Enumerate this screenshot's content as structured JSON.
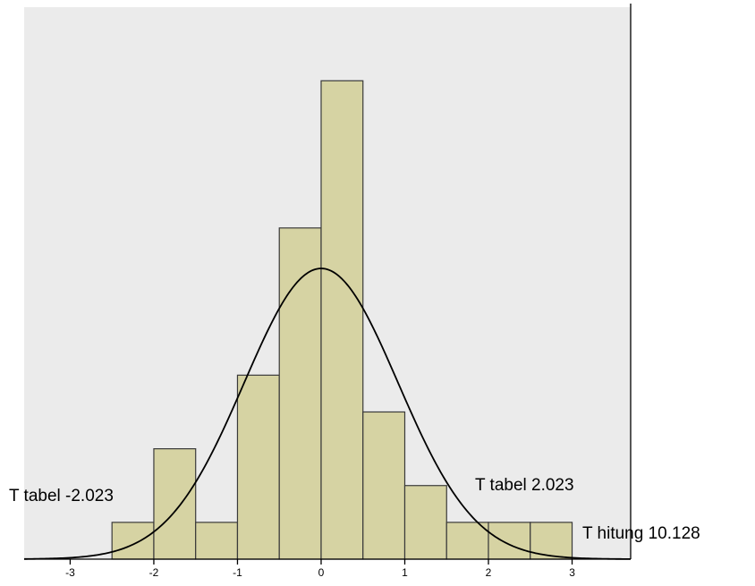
{
  "chart_data": {
    "type": "bar",
    "subtype": "histogram-with-normal-curve",
    "bins": [
      {
        "x0": -2.5,
        "x1": -2.0,
        "value": 1
      },
      {
        "x0": -2.0,
        "x1": -1.5,
        "value": 3
      },
      {
        "x0": -1.5,
        "x1": -1.0,
        "value": 1
      },
      {
        "x0": -1.0,
        "x1": -0.5,
        "value": 5
      },
      {
        "x0": -0.5,
        "x1": 0.0,
        "value": 9
      },
      {
        "x0": 0.0,
        "x1": 0.5,
        "value": 13
      },
      {
        "x0": 0.5,
        "x1": 1.0,
        "value": 4
      },
      {
        "x0": 1.0,
        "x1": 1.5,
        "value": 2
      },
      {
        "x0": 1.5,
        "x1": 2.0,
        "value": 1
      },
      {
        "x0": 2.0,
        "x1": 2.5,
        "value": 1
      },
      {
        "x0": 2.5,
        "x1": 3.0,
        "value": 1
      }
    ],
    "normal_curve": {
      "mean": 0.0,
      "sd": 0.92,
      "peak": 7.9
    },
    "xlim": [
      -3.55,
      3.7
    ],
    "ylim": [
      0,
      15
    ],
    "xticks": [
      "-3",
      "-2",
      "-1",
      "0",
      "1",
      "2",
      "3"
    ],
    "xtick_values": [
      -3,
      -2,
      -1,
      0,
      1,
      2,
      3
    ],
    "grid": false,
    "annotations": [
      {
        "text": "T tabel -2.023",
        "x": -2.023
      },
      {
        "text": "T tabel 2.023",
        "x": 2.023
      },
      {
        "text": "T hitung 10.128",
        "x": 10.128
      }
    ],
    "colors": {
      "plot_background": "#ebebeb",
      "bar_fill": "#d6d3a3",
      "bar_stroke": "#3a3a3a",
      "curve": "#000000"
    }
  }
}
